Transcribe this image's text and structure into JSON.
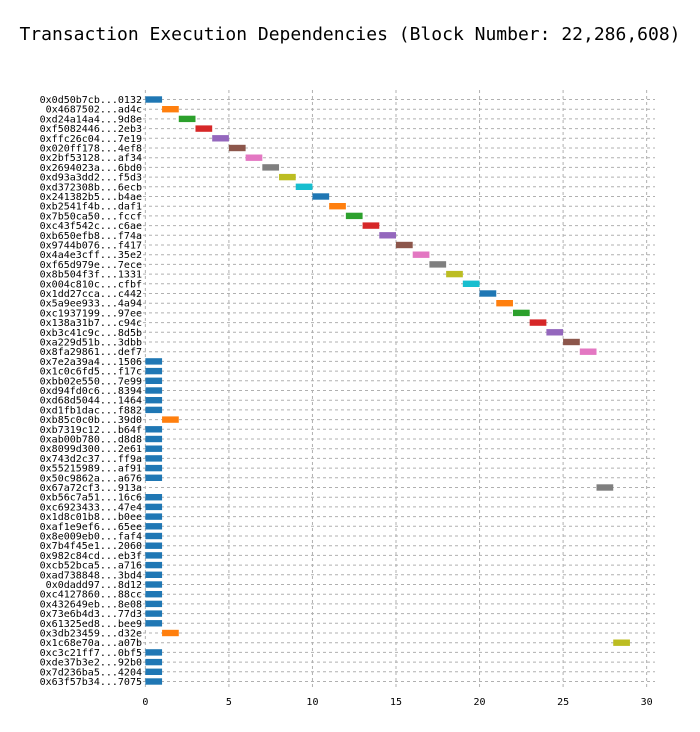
{
  "chart_data": {
    "type": "bar",
    "orientation": "horizontal-gantt",
    "title": "Transaction Execution Dependencies (Block Number: 22,286,608)",
    "xlabel": "",
    "ylabel": "",
    "xlim": [
      -0.5,
      30.5
    ],
    "xticks": [
      0,
      5,
      10,
      15,
      20,
      25,
      30
    ],
    "grid": true,
    "legend": "none",
    "palette": [
      "#1f77b4",
      "#ff7f0e",
      "#2ca02c",
      "#d62728",
      "#9467bd",
      "#8c564b",
      "#e377c2",
      "#7f7f7f",
      "#bcbd22",
      "#17becf"
    ],
    "tasks": [
      {
        "tx": "0x0d50b7cb...0132",
        "start": 0,
        "end": 1
      },
      {
        "tx": "0x4687502...ad4c",
        "start": 1,
        "end": 2
      },
      {
        "tx": "0xd24a14a4...9d8e",
        "start": 2,
        "end": 3
      },
      {
        "tx": "0xf5082446...2eb3",
        "start": 3,
        "end": 4
      },
      {
        "tx": "0xffc26c04...7e19",
        "start": 4,
        "end": 5
      },
      {
        "tx": "0x020ff178...4ef8",
        "start": 5,
        "end": 6
      },
      {
        "tx": "0x2bf53128...af34",
        "start": 6,
        "end": 7
      },
      {
        "tx": "0x2694023a...6bd0",
        "start": 7,
        "end": 8
      },
      {
        "tx": "0xd93a3dd2...f5d3",
        "start": 8,
        "end": 9
      },
      {
        "tx": "0xd372308b...6ecb",
        "start": 9,
        "end": 10
      },
      {
        "tx": "0x241382b5...b4ae",
        "start": 10,
        "end": 11
      },
      {
        "tx": "0xb2541f4b...daf1",
        "start": 11,
        "end": 12
      },
      {
        "tx": "0x7b50ca50...fccf",
        "start": 12,
        "end": 13
      },
      {
        "tx": "0xc43f542c...c6ae",
        "start": 13,
        "end": 14
      },
      {
        "tx": "0xb650efb8...f74a",
        "start": 14,
        "end": 15
      },
      {
        "tx": "0x9744b076...f417",
        "start": 15,
        "end": 16
      },
      {
        "tx": "0x4a4e3cff...35e2",
        "start": 16,
        "end": 17
      },
      {
        "tx": "0xf65d979e...7ece",
        "start": 17,
        "end": 18
      },
      {
        "tx": "0x8b504f3f...1331",
        "start": 18,
        "end": 19
      },
      {
        "tx": "0x004c810c...cfbf",
        "start": 19,
        "end": 20
      },
      {
        "tx": "0x1dd27cca...c442",
        "start": 20,
        "end": 21
      },
      {
        "tx": "0x5a9ee933...4a94",
        "start": 21,
        "end": 22
      },
      {
        "tx": "0xc1937199...97ee",
        "start": 22,
        "end": 23
      },
      {
        "tx": "0x138a31b7...c94c",
        "start": 23,
        "end": 24
      },
      {
        "tx": "0xb3c41c9c...8d5b",
        "start": 24,
        "end": 25
      },
      {
        "tx": "0xa229d51b...3dbb",
        "start": 25,
        "end": 26
      },
      {
        "tx": "0x8fa29861...def7",
        "start": 26,
        "end": 27
      },
      {
        "tx": "0x7e2a39a4...1506",
        "start": 0,
        "end": 1
      },
      {
        "tx": "0x1c0c6fd5...f17c",
        "start": 0,
        "end": 1
      },
      {
        "tx": "0xbb02e550...7e99",
        "start": 0,
        "end": 1
      },
      {
        "tx": "0xd94fd0c6...8394",
        "start": 0,
        "end": 1
      },
      {
        "tx": "0xd68d5044...1464",
        "start": 0,
        "end": 1
      },
      {
        "tx": "0xd1fb1dac...f882",
        "start": 0,
        "end": 1
      },
      {
        "tx": "0xb85c0c0b...39d0",
        "start": 1,
        "end": 2
      },
      {
        "tx": "0xb7319c12...b64f",
        "start": 0,
        "end": 1
      },
      {
        "tx": "0xab00b780...d8d8",
        "start": 0,
        "end": 1
      },
      {
        "tx": "0x8099d300...2e61",
        "start": 0,
        "end": 1
      },
      {
        "tx": "0x743d2c37...ff9a",
        "start": 0,
        "end": 1
      },
      {
        "tx": "0x55215989...af91",
        "start": 0,
        "end": 1
      },
      {
        "tx": "0x50c9862a...a676",
        "start": 0,
        "end": 1
      },
      {
        "tx": "0x67a72cf3...913a",
        "start": 27,
        "end": 28
      },
      {
        "tx": "0xb56c7a51...16c6",
        "start": 0,
        "end": 1
      },
      {
        "tx": "0xc6923433...47e4",
        "start": 0,
        "end": 1
      },
      {
        "tx": "0x1d8c01b8...b0ee",
        "start": 0,
        "end": 1
      },
      {
        "tx": "0xaf1e9ef6...65ee",
        "start": 0,
        "end": 1
      },
      {
        "tx": "0x8e009eb0...faf4",
        "start": 0,
        "end": 1
      },
      {
        "tx": "0x7b4f45e1...2060",
        "start": 0,
        "end": 1
      },
      {
        "tx": "0x982c84cd...eb3f",
        "start": 0,
        "end": 1
      },
      {
        "tx": "0xcb52bca5...a716",
        "start": 0,
        "end": 1
      },
      {
        "tx": "0xad738848...3bd4",
        "start": 0,
        "end": 1
      },
      {
        "tx": "0x0dadd97...8d12",
        "start": 0,
        "end": 1
      },
      {
        "tx": "0xc4127860...88cc",
        "start": 0,
        "end": 1
      },
      {
        "tx": "0x432649eb...8e08",
        "start": 0,
        "end": 1
      },
      {
        "tx": "0x73e6b4d3...77d3",
        "start": 0,
        "end": 1
      },
      {
        "tx": "0x61325ed8...bee9",
        "start": 0,
        "end": 1
      },
      {
        "tx": "0x3db23459...d32e",
        "start": 1,
        "end": 2
      },
      {
        "tx": "0x1c68e70a...a07b",
        "start": 28,
        "end": 29
      },
      {
        "tx": "0xc3c21ff7...0bf5",
        "start": 0,
        "end": 1
      },
      {
        "tx": "0xde37b3e2...92b0",
        "start": 0,
        "end": 1
      },
      {
        "tx": "0x7d236ba5...4204",
        "start": 0,
        "end": 1
      },
      {
        "tx": "0x63f57b34...7075",
        "start": 0,
        "end": 1
      }
    ]
  }
}
